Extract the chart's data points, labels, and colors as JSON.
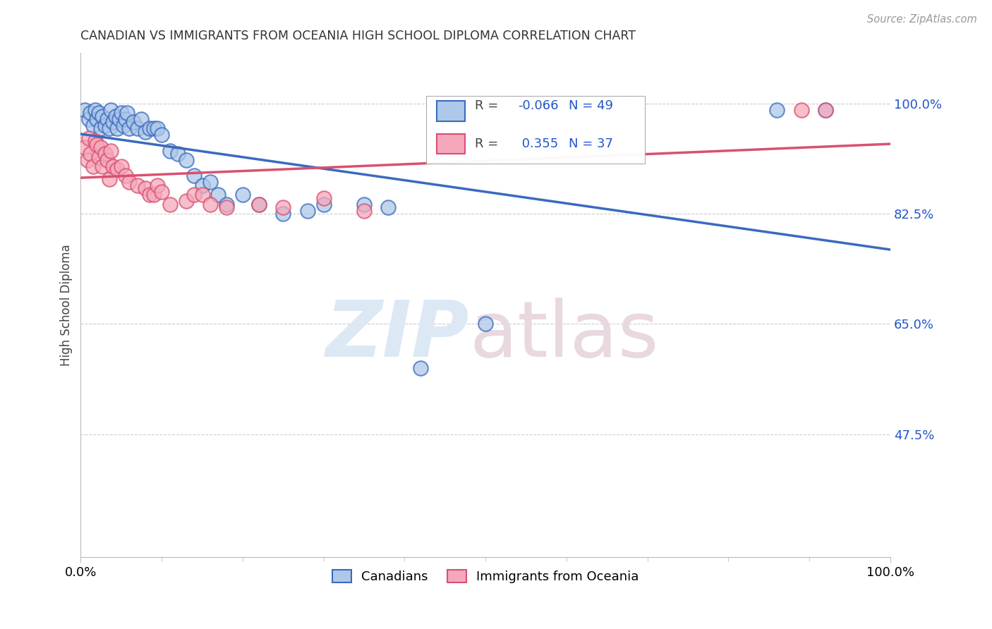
{
  "title": "CANADIAN VS IMMIGRANTS FROM OCEANIA HIGH SCHOOL DIPLOMA CORRELATION CHART",
  "source": "Source: ZipAtlas.com",
  "ylabel": "High School Diploma",
  "R_canadian": -0.066,
  "N_canadian": 49,
  "R_oceania": 0.355,
  "N_oceania": 37,
  "canadian_color": "#adc8e8",
  "oceania_color": "#f5a8bc",
  "canadian_line_color": "#3a6abf",
  "oceania_line_color": "#d95070",
  "legend_canadians": "Canadians",
  "legend_oceania": "Immigrants from Oceania",
  "xlim": [
    0.0,
    1.0
  ],
  "ylim": [
    0.28,
    1.08
  ],
  "yticks": [
    0.475,
    0.65,
    0.825,
    1.0
  ],
  "ytick_labels": [
    "47.5%",
    "65.0%",
    "82.5%",
    "100.0%"
  ],
  "xtick_labels": [
    "0.0%",
    "100.0%"
  ],
  "xtick_positions": [
    0.0,
    1.0
  ],
  "canadian_x": [
    0.005,
    0.01,
    0.012,
    0.015,
    0.018,
    0.02,
    0.022,
    0.025,
    0.027,
    0.03,
    0.033,
    0.035,
    0.037,
    0.04,
    0.043,
    0.045,
    0.048,
    0.05,
    0.053,
    0.055,
    0.057,
    0.06,
    0.065,
    0.07,
    0.075,
    0.08,
    0.085,
    0.09,
    0.095,
    0.1,
    0.11,
    0.12,
    0.13,
    0.14,
    0.15,
    0.16,
    0.17,
    0.18,
    0.2,
    0.22,
    0.25,
    0.28,
    0.3,
    0.35,
    0.38,
    0.42,
    0.5,
    0.86,
    0.92
  ],
  "canadian_y": [
    0.99,
    0.975,
    0.985,
    0.965,
    0.99,
    0.975,
    0.985,
    0.96,
    0.98,
    0.965,
    0.975,
    0.96,
    0.99,
    0.97,
    0.98,
    0.96,
    0.975,
    0.985,
    0.965,
    0.975,
    0.985,
    0.96,
    0.97,
    0.96,
    0.975,
    0.955,
    0.96,
    0.96,
    0.96,
    0.95,
    0.925,
    0.92,
    0.91,
    0.885,
    0.87,
    0.875,
    0.855,
    0.84,
    0.855,
    0.84,
    0.825,
    0.83,
    0.84,
    0.84,
    0.835,
    0.58,
    0.65,
    0.99,
    0.99
  ],
  "oceania_x": [
    0.005,
    0.008,
    0.01,
    0.012,
    0.015,
    0.018,
    0.02,
    0.022,
    0.025,
    0.027,
    0.03,
    0.033,
    0.035,
    0.037,
    0.04,
    0.045,
    0.05,
    0.055,
    0.06,
    0.07,
    0.08,
    0.085,
    0.09,
    0.095,
    0.1,
    0.11,
    0.13,
    0.14,
    0.15,
    0.16,
    0.18,
    0.22,
    0.25,
    0.3,
    0.35,
    0.89,
    0.92
  ],
  "oceania_y": [
    0.93,
    0.91,
    0.945,
    0.92,
    0.9,
    0.94,
    0.935,
    0.915,
    0.93,
    0.9,
    0.92,
    0.91,
    0.88,
    0.925,
    0.9,
    0.895,
    0.9,
    0.885,
    0.875,
    0.87,
    0.865,
    0.855,
    0.855,
    0.87,
    0.86,
    0.84,
    0.845,
    0.855,
    0.855,
    0.84,
    0.835,
    0.84,
    0.835,
    0.85,
    0.83,
    0.99,
    0.99
  ]
}
